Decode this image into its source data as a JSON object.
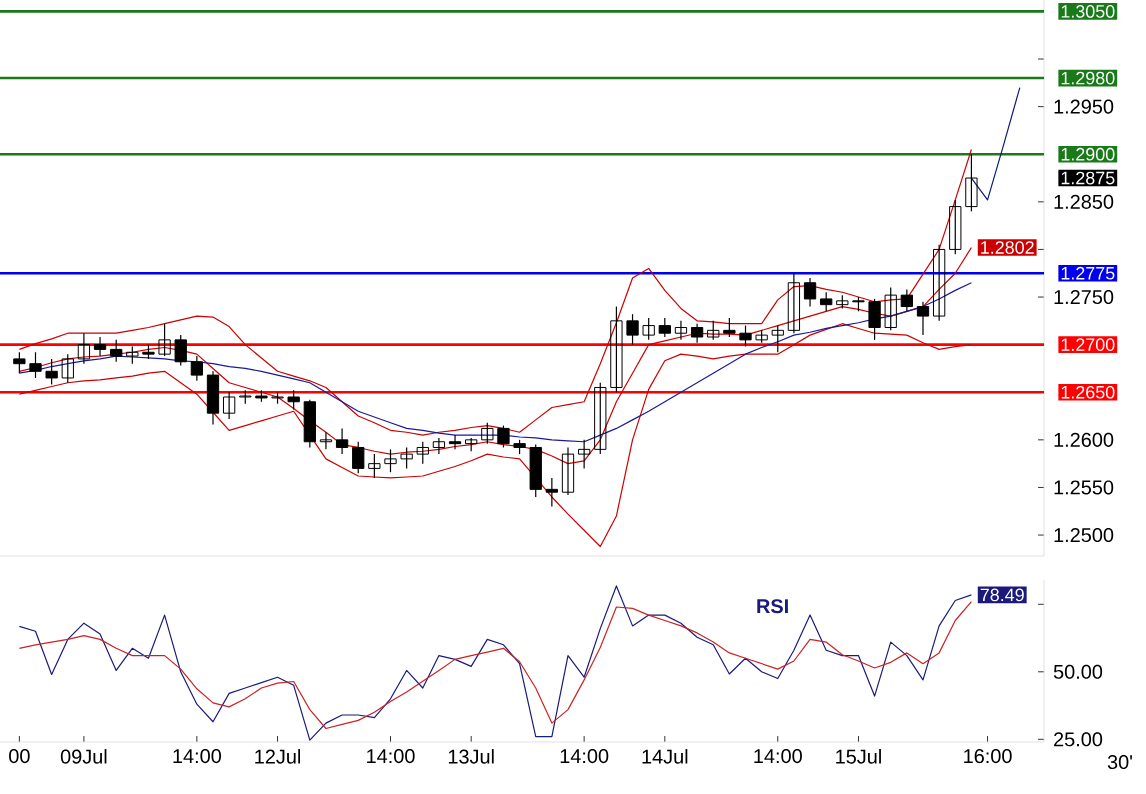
{
  "chart_data": [
    {
      "type": "candlestick",
      "color": "#000000",
      "tick_labels": "y",
      "categories": [
        null,
        null,
        null,
        null,
        null,
        null,
        null,
        null,
        null,
        null,
        null,
        null,
        null,
        null,
        null,
        null,
        null,
        null,
        null,
        null,
        null,
        null,
        null,
        null,
        null,
        null,
        null,
        null,
        null,
        null,
        null,
        null,
        null,
        null,
        null,
        null,
        null,
        null,
        null,
        null,
        null,
        null,
        null,
        null,
        null,
        null,
        null,
        null,
        null,
        null,
        null,
        null,
        null,
        null,
        null,
        null,
        null,
        null,
        null,
        null,
        null,
        null,
        null,
        null
      ],
      "ohlc": [
        [
          1.2685,
          1.2692,
          1.267,
          1.268
        ],
        [
          1.268,
          1.2692,
          1.2665,
          1.2672
        ],
        [
          1.2672,
          1.2685,
          1.2658,
          1.2665
        ],
        [
          1.2665,
          1.269,
          1.266,
          1.2685
        ],
        [
          1.2685,
          1.2712,
          1.268,
          1.27
        ],
        [
          1.27,
          1.2708,
          1.2688,
          1.2695
        ],
        [
          1.2695,
          1.2705,
          1.2682,
          1.2688
        ],
        [
          1.2688,
          1.2698,
          1.268,
          1.2692
        ],
        [
          1.2692,
          1.27,
          1.2685,
          1.269
        ],
        [
          1.269,
          1.2722,
          1.2688,
          1.2705
        ],
        [
          1.2705,
          1.271,
          1.2678,
          1.2682
        ],
        [
          1.2682,
          1.2688,
          1.2662,
          1.2668
        ],
        [
          1.2668,
          1.2672,
          1.2616,
          1.2628
        ],
        [
          1.2628,
          1.265,
          1.2622,
          1.2645
        ],
        [
          1.2645,
          1.2652,
          1.2638,
          1.2646
        ],
        [
          1.2646,
          1.2652,
          1.264,
          1.2644
        ],
        [
          1.2644,
          1.265,
          1.2638,
          1.2645
        ],
        [
          1.2645,
          1.2652,
          1.2632,
          1.264
        ],
        [
          1.264,
          1.2642,
          1.2592,
          1.2598
        ],
        [
          1.2598,
          1.2608,
          1.259,
          1.26
        ],
        [
          1.26,
          1.2612,
          1.2585,
          1.2592
        ],
        [
          1.2592,
          1.2598,
          1.2565,
          1.257
        ],
        [
          1.257,
          1.2585,
          1.256,
          1.2575
        ],
        [
          1.2575,
          1.259,
          1.2566,
          1.258
        ],
        [
          1.258,
          1.2592,
          1.257,
          1.2585
        ],
        [
          1.2585,
          1.2598,
          1.2575,
          1.2592
        ],
        [
          1.2592,
          1.2602,
          1.2585,
          1.2598
        ],
        [
          1.2598,
          1.2605,
          1.259,
          1.2596
        ],
        [
          1.2596,
          1.2602,
          1.2588,
          1.26
        ],
        [
          1.26,
          1.2618,
          1.2596,
          1.2612
        ],
        [
          1.2612,
          1.2615,
          1.2592,
          1.2596
        ],
        [
          1.2596,
          1.26,
          1.2585,
          1.2592
        ],
        [
          1.2592,
          1.2595,
          1.254,
          1.2548
        ],
        [
          1.2548,
          1.256,
          1.253,
          1.2545
        ],
        [
          1.2545,
          1.2592,
          1.2542,
          1.2585
        ],
        [
          1.2585,
          1.26,
          1.257,
          1.259
        ],
        [
          1.259,
          1.266,
          1.2585,
          1.2655
        ],
        [
          1.2655,
          1.274,
          1.265,
          1.2725
        ],
        [
          1.2725,
          1.2732,
          1.27,
          1.271
        ],
        [
          1.271,
          1.2728,
          1.2705,
          1.272
        ],
        [
          1.272,
          1.2728,
          1.2708,
          1.2712
        ],
        [
          1.2712,
          1.2725,
          1.2705,
          1.2718
        ],
        [
          1.2718,
          1.2722,
          1.2702,
          1.2708
        ],
        [
          1.2708,
          1.2725,
          1.2705,
          1.2715
        ],
        [
          1.2715,
          1.2728,
          1.2708,
          1.2712
        ],
        [
          1.2712,
          1.272,
          1.2698,
          1.2705
        ],
        [
          1.2705,
          1.2715,
          1.2702,
          1.271
        ],
        [
          1.271,
          1.272,
          1.2692,
          1.2715
        ],
        [
          1.2715,
          1.2775,
          1.2712,
          1.2765
        ],
        [
          1.2765,
          1.277,
          1.274,
          1.2748
        ],
        [
          1.2748,
          1.2755,
          1.2735,
          1.2742
        ],
        [
          1.2742,
          1.2752,
          1.2738,
          1.2746
        ],
        [
          1.2746,
          1.275,
          1.2735,
          1.2745
        ],
        [
          1.2745,
          1.2748,
          1.2705,
          1.2718
        ],
        [
          1.2718,
          1.276,
          1.2715,
          1.2752
        ],
        [
          1.2752,
          1.2758,
          1.2735,
          1.274
        ],
        [
          1.274,
          1.2745,
          1.271,
          1.273
        ],
        [
          1.273,
          1.2805,
          1.2725,
          1.28
        ],
        [
          1.28,
          1.2852,
          1.2795,
          1.2845
        ],
        [
          1.2845,
          1.29,
          1.284,
          1.2875
        ],
        null,
        null,
        null,
        null
      ],
      "value_labels": [
        null,
        null,
        null,
        null,
        null,
        null,
        null,
        null,
        null,
        null,
        null,
        null,
        null,
        null,
        null,
        null,
        null,
        null,
        null,
        null,
        null,
        null,
        null,
        null,
        null,
        null,
        null,
        null,
        null,
        null,
        null,
        null,
        null,
        null,
        null,
        null,
        null,
        null,
        null,
        null,
        null,
        null,
        null,
        null,
        null,
        null,
        null,
        null,
        null,
        null,
        null,
        null,
        null,
        null,
        null,
        null,
        null,
        null,
        null,
        "1.2875",
        null,
        null,
        null,
        null
      ],
      "ylim": [
        1.2478,
        1.3062
      ],
      "yticks": [
        {
          "value": 1.25,
          "label": "1.2500"
        },
        {
          "value": 1.255,
          "label": "1.2550"
        },
        {
          "value": 1.26,
          "label": "1.2600"
        },
        {
          "value": 1.265,
          "label": null
        },
        {
          "value": 1.27,
          "label": null
        },
        {
          "value": 1.275,
          "label": "1.2750"
        },
        {
          "value": 1.28,
          "label": null
        },
        {
          "value": 1.285,
          "label": "1.2850"
        },
        {
          "value": 1.29,
          "label": null
        },
        {
          "value": 1.295,
          "label": "1.2950"
        },
        {
          "value": 1.3,
          "label": null
        }
      ],
      "series": [
        {
          "type": "line",
          "color": "#cc0000",
          "values": [
            1.2695,
            1.2701,
            1.2706,
            1.2712,
            1.2712,
            1.2712,
            1.2712,
            1.2715,
            1.2718,
            1.2722,
            1.2726,
            1.273,
            1.2729,
            1.2719,
            1.27,
            1.2686,
            1.2672,
            1.2667,
            1.2662,
            1.2655,
            1.264,
            1.2625,
            1.2618,
            1.261,
            1.2608,
            1.2605,
            1.2608,
            1.261,
            1.2613,
            1.2615,
            1.2612,
            1.2608,
            1.2621,
            1.2634,
            1.2637,
            1.264,
            1.268,
            1.2723,
            1.277,
            1.278,
            1.2757,
            1.2738,
            1.2725,
            1.2724,
            1.2722,
            1.2722,
            1.2722,
            1.2747,
            1.2761,
            1.2762,
            1.2758,
            1.2755,
            1.275,
            1.2745,
            1.2747,
            1.2748,
            1.2774,
            1.28,
            1.2852,
            1.2905,
            null,
            null,
            null,
            null
          ]
        },
        {
          "type": "line",
          "color": "#cc0000",
          "values": [
            1.2648,
            1.2652,
            1.2656,
            1.266,
            1.2662,
            1.2663,
            1.2665,
            1.2667,
            1.267,
            1.2672,
            1.266,
            1.2648,
            1.2629,
            1.261,
            1.2615,
            1.262,
            1.2625,
            1.263,
            1.2605,
            1.258,
            1.2571,
            1.2562,
            1.2561,
            1.256,
            1.2561,
            1.2562,
            1.2567,
            1.2572,
            1.2578,
            1.2585,
            1.2582,
            1.258,
            1.256,
            1.254,
            1.2522,
            1.2505,
            1.2488,
            1.252,
            1.26,
            1.2653,
            1.2683,
            1.269,
            1.2688,
            1.2685,
            1.2688,
            1.269,
            1.269,
            1.269,
            1.27,
            1.271,
            1.2716,
            1.2722,
            1.2717,
            1.2712,
            1.2711,
            1.271,
            1.2702,
            1.2695,
            1.2698,
            1.27,
            null,
            null,
            null,
            null
          ]
        },
        {
          "type": "line",
          "color": "#cc0000",
          "values": [
            1.2672,
            1.2676,
            1.2681,
            1.2685,
            1.2687,
            1.2688,
            1.269,
            1.2692,
            1.2695,
            1.2697,
            1.2694,
            1.269,
            1.2675,
            1.266,
            1.2655,
            1.265,
            1.2645,
            1.2633,
            1.262,
            1.2608,
            1.2595,
            1.2592,
            1.2588,
            1.2585,
            1.2587,
            1.2588,
            1.259,
            1.2593,
            1.2595,
            1.2598,
            1.2595,
            1.2593,
            1.259,
            1.2583,
            1.2575,
            1.2578,
            1.26,
            1.264,
            1.267,
            1.27,
            1.2704,
            1.2708,
            1.2712,
            1.2711,
            1.2711,
            1.271,
            1.2715,
            1.272,
            1.2725,
            1.273,
            1.2735,
            1.274,
            1.2737,
            1.2733,
            1.273,
            1.2735,
            1.274,
            1.2758,
            1.2775,
            1.2802,
            null,
            null,
            null,
            null
          ],
          "value_labels": [
            null,
            null,
            null,
            null,
            null,
            null,
            null,
            null,
            null,
            null,
            null,
            null,
            null,
            null,
            null,
            null,
            null,
            null,
            null,
            null,
            null,
            null,
            null,
            null,
            null,
            null,
            null,
            null,
            null,
            null,
            null,
            null,
            null,
            null,
            null,
            null,
            null,
            null,
            null,
            null,
            null,
            null,
            null,
            null,
            null,
            null,
            null,
            null,
            null,
            null,
            null,
            null,
            null,
            null,
            null,
            null,
            null,
            null,
            null,
            "1.2802",
            null,
            null,
            null,
            null
          ]
        },
        {
          "type": "line",
          "color": "#1a1a99",
          "values": [
            1.267,
            1.2673,
            1.2677,
            1.268,
            1.2683,
            1.2685,
            1.2688,
            1.2687,
            1.2686,
            1.2685,
            1.2683,
            1.2682,
            1.268,
            1.2677,
            1.2675,
            1.2672,
            1.2668,
            1.2664,
            1.266,
            1.265,
            1.264,
            1.263,
            1.2624,
            1.2618,
            1.2612,
            1.261,
            1.2607,
            1.2605,
            1.2605,
            1.2605,
            1.2605,
            1.2603,
            1.2602,
            1.26,
            1.2599,
            1.2598,
            1.2605,
            1.2612,
            1.2621,
            1.263,
            1.264,
            1.265,
            1.266,
            1.267,
            1.268,
            1.269,
            1.2697,
            1.2703,
            1.271,
            1.2713,
            1.2717,
            1.272,
            1.2723,
            1.2727,
            1.273,
            1.2735,
            1.274,
            1.2748,
            1.2757,
            1.2765,
            null,
            null,
            null,
            null
          ]
        },
        {
          "type": "line",
          "color": "#0c1a7a",
          "values": [
            null,
            null,
            null,
            null,
            null,
            null,
            null,
            null,
            null,
            null,
            null,
            null,
            null,
            null,
            null,
            null,
            null,
            null,
            null,
            null,
            null,
            null,
            null,
            null,
            null,
            null,
            null,
            null,
            null,
            null,
            null,
            null,
            null,
            null,
            null,
            null,
            null,
            null,
            null,
            null,
            null,
            null,
            null,
            null,
            null,
            null,
            null,
            null,
            null,
            null,
            null,
            null,
            null,
            null,
            null,
            null,
            null,
            null,
            null,
            1.2875,
            1.2852,
            1.291,
            1.297,
            null
          ]
        }
      ],
      "ref_lines": [
        {
          "axis": "y",
          "value": 1.305,
          "label": "1.3050",
          "color": "#1a7a1a"
        },
        {
          "axis": "y",
          "value": 1.298,
          "label": "1.2980",
          "color": "#1a7a1a"
        },
        {
          "axis": "y",
          "value": 1.29,
          "label": "1.2900",
          "color": "#1a7a1a"
        },
        {
          "axis": "y",
          "value": 1.2775,
          "label": "1.2775",
          "color": "#0000ee"
        },
        {
          "axis": "y",
          "value": 1.27,
          "label": "1.2700",
          "color": "#ff0000"
        },
        {
          "axis": "y",
          "value": 1.265,
          "label": "1.2650",
          "color": "#ff0000"
        }
      ]
    },
    {
      "type": "line",
      "ylim": [
        24,
        84
      ],
      "categories": [
        "00",
        null,
        null,
        null,
        "09Jul",
        null,
        null,
        null,
        null,
        null,
        null,
        "14:00",
        null,
        null,
        null,
        null,
        "12Jul",
        null,
        null,
        null,
        null,
        null,
        null,
        "14:00",
        null,
        null,
        null,
        null,
        "13Jul",
        null,
        null,
        null,
        null,
        null,
        null,
        "14:00",
        null,
        null,
        null,
        null,
        "14Jul",
        null,
        null,
        null,
        null,
        null,
        null,
        "14:00",
        null,
        null,
        null,
        null,
        "15Jul",
        null,
        null,
        null,
        null,
        null,
        null,
        null,
        "16:00",
        null,
        null,
        null
      ],
      "yticks": [
        {
          "value": 25,
          "label": "25.00"
        },
        {
          "value": 50,
          "label": "50.00"
        },
        {
          "value": 75,
          "label": null
        }
      ],
      "annotations": [
        "30'"
      ],
      "series": [
        {
          "name": "RSI",
          "color": "#1a1a7a",
          "values": [
            66.8,
            65,
            49,
            62,
            68,
            64,
            50.5,
            58.7,
            55,
            71,
            50,
            38,
            31.5,
            42,
            44,
            46,
            48,
            45,
            24.7,
            31,
            34,
            34,
            33,
            40,
            50.5,
            44,
            56,
            54.6,
            52,
            62,
            60,
            53,
            26,
            26,
            56,
            48,
            66,
            81.8,
            67,
            71,
            71,
            68,
            62.8,
            60,
            49.2,
            55,
            50,
            47.5,
            58,
            71,
            58,
            56,
            56,
            41,
            61,
            56,
            47,
            67,
            76.4,
            78.49,
            null,
            null,
            null,
            null
          ],
          "value_labels": [
            null,
            null,
            null,
            null,
            null,
            null,
            null,
            null,
            null,
            null,
            null,
            null,
            null,
            null,
            null,
            null,
            null,
            null,
            null,
            null,
            null,
            null,
            null,
            null,
            null,
            null,
            null,
            null,
            null,
            null,
            null,
            null,
            null,
            null,
            null,
            null,
            null,
            null,
            null,
            null,
            null,
            null,
            null,
            null,
            null,
            null,
            null,
            null,
            null,
            null,
            null,
            null,
            null,
            null,
            null,
            null,
            null,
            null,
            null,
            "78.49",
            null,
            null,
            null,
            null
          ]
        },
        {
          "color": "#cc2222",
          "values": [
            58.7,
            60,
            61,
            62,
            63.4,
            62,
            58.7,
            56,
            56,
            56,
            51,
            43.7,
            38.5,
            37,
            40,
            44,
            45.8,
            46.4,
            36,
            29,
            30.5,
            32,
            35,
            39,
            42.5,
            46.5,
            50.5,
            54.6,
            56,
            57.3,
            58.7,
            53.7,
            44,
            31,
            36,
            47,
            59,
            74,
            73.5,
            71,
            69,
            67,
            64.4,
            61,
            57,
            55,
            53,
            51,
            54,
            62,
            61,
            56.3,
            54,
            51.4,
            53.5,
            57,
            53,
            57,
            69,
            76,
            null,
            null,
            null,
            null
          ]
        }
      ]
    }
  ]
}
